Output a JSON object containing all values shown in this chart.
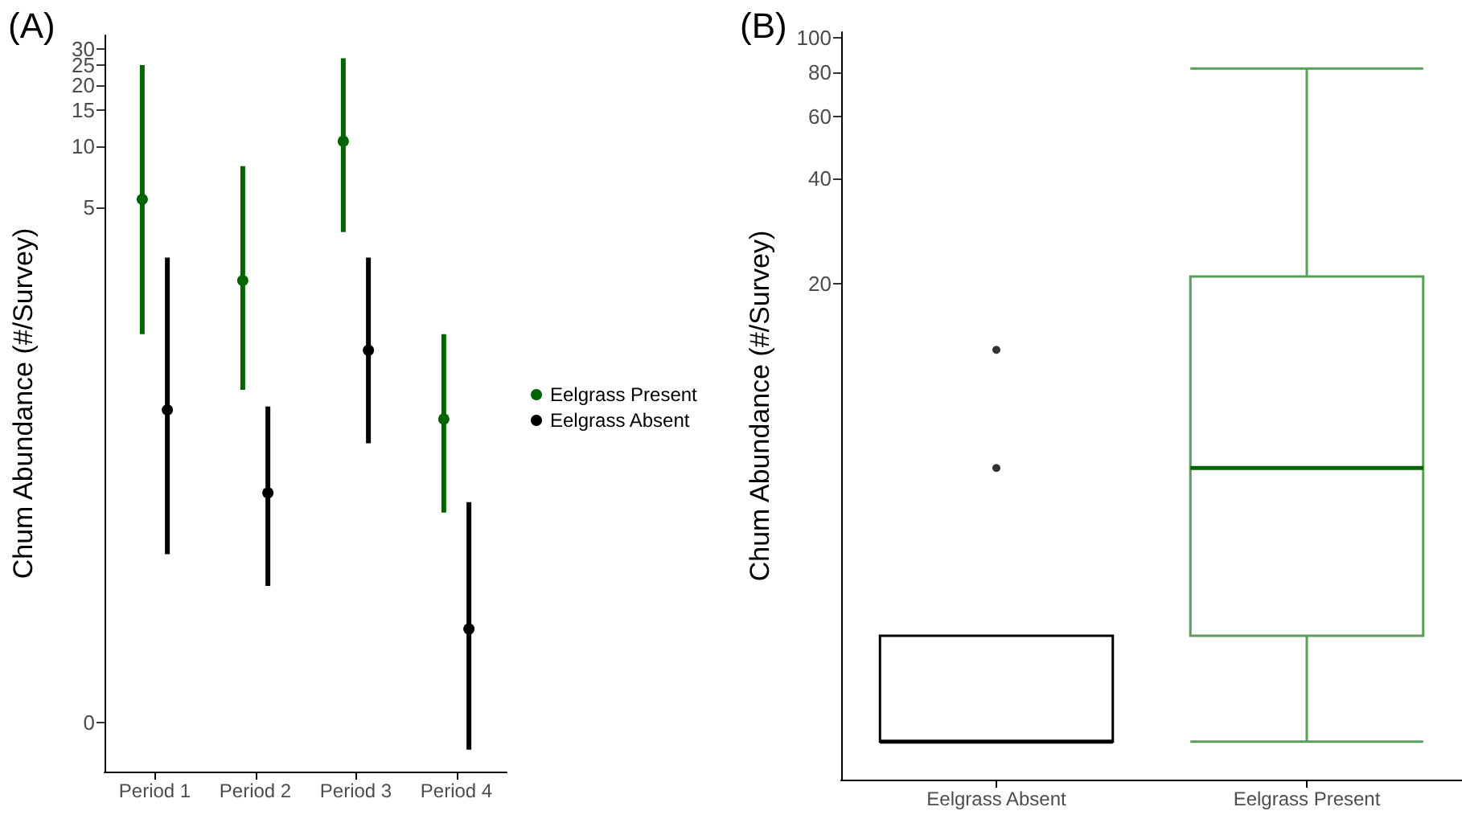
{
  "chart_data": [
    {
      "type": "scatter",
      "title": "(A)",
      "ylabel": "Chum Abundance (#/Survey)",
      "categories": [
        "Period 1",
        "Period 2",
        "Period 3",
        "Period 4"
      ],
      "log": "y",
      "ylim": [
        0.0086,
        35
      ],
      "yticks": [
        {
          "value": 0.015,
          "label": "0"
        },
        5,
        10,
        15,
        20,
        25,
        30
      ],
      "legend": "right",
      "marker": "circle",
      "series": [
        {
          "name": "Eelgrass Present",
          "color": "#006400",
          "values": [
            5.5,
            2.2,
            10.6,
            0.46
          ],
          "errors": [
            [
              1.2,
              25
            ],
            [
              0.64,
              8.0
            ],
            [
              3.8,
              27
            ],
            [
              0.16,
              1.2
            ]
          ]
        },
        {
          "name": "Eelgrass Absent",
          "color": "#000000",
          "values": [
            0.51,
            0.2,
            1.0,
            0.043
          ],
          "errors": [
            [
              0.1,
              2.85
            ],
            [
              0.07,
              0.53
            ],
            [
              0.35,
              2.85
            ],
            [
              0.011,
              0.18
            ]
          ]
        }
      ]
    },
    {
      "type": "box",
      "title": "(B)",
      "ylabel": "Chum Abundance (#/Survey)",
      "categories": [
        "Eelgrass Absent",
        "Eelgrass Present"
      ],
      "log": "y",
      "ylim": [
        0.78,
        104
      ],
      "yticks": [
        20,
        40,
        60,
        80,
        100
      ],
      "colors": [
        "#000000",
        "#5a9e5a"
      ],
      "boxes": [
        {
          "low": 1,
          "q1": 1,
          "median": 1,
          "q3": 2,
          "high": 2,
          "outliers": [
            6,
            13
          ]
        },
        {
          "low": 1,
          "q1": 2,
          "median": 6,
          "q3": 21,
          "high": 82
        }
      ]
    }
  ]
}
